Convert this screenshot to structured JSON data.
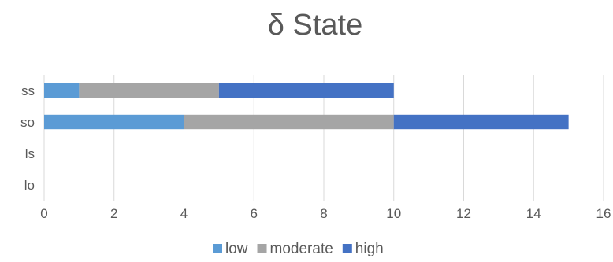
{
  "chart_data": {
    "type": "bar",
    "orientation": "horizontal",
    "stacked": true,
    "title": "δ State",
    "categories": [
      "lo",
      "ls",
      "so",
      "ss"
    ],
    "series": [
      {
        "name": "low",
        "color": "#5b9bd5",
        "values": [
          0,
          0,
          4,
          1
        ]
      },
      {
        "name": "moderate",
        "color": "#a5a5a5",
        "values": [
          0,
          0,
          6,
          4
        ]
      },
      {
        "name": "high",
        "color": "#4472c4",
        "values": [
          0,
          0,
          5,
          5
        ]
      }
    ],
    "xlim": [
      0,
      16
    ],
    "xticks": [
      0,
      2,
      4,
      6,
      8,
      10,
      12,
      14,
      16
    ],
    "grid": "vertical",
    "legend_position": "bottom"
  }
}
